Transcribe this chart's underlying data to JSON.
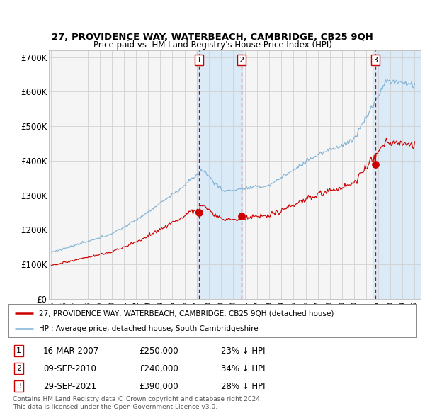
{
  "title": "27, PROVIDENCE WAY, WATERBEACH, CAMBRIDGE, CB25 9QH",
  "subtitle": "Price paid vs. HM Land Registry's House Price Index (HPI)",
  "legend_line1": "27, PROVIDENCE WAY, WATERBEACH, CAMBRIDGE, CB25 9QH (detached house)",
  "legend_line2": "HPI: Average price, detached house, South Cambridgeshire",
  "footer1": "Contains HM Land Registry data © Crown copyright and database right 2024.",
  "footer2": "This data is licensed under the Open Government Licence v3.0.",
  "transactions": [
    {
      "num": 1,
      "date": "16-MAR-2007",
      "price": 250000,
      "pct": "23%",
      "date_x": 2007.2
    },
    {
      "num": 2,
      "date": "09-SEP-2010",
      "price": 240000,
      "pct": "34%",
      "date_x": 2010.69
    },
    {
      "num": 3,
      "date": "29-SEP-2021",
      "price": 390000,
      "pct": "28%",
      "date_x": 2021.74
    }
  ],
  "hpi_color": "#7bafd4",
  "price_color": "#cc0000",
  "highlight_color": "#dbeaf7",
  "vline_color": "#cc0000",
  "dot_color": "#cc0000",
  "grid_color": "#d0d0d0",
  "bg_color": "#f5f5f5",
  "plot_bg": "#f5f5f5",
  "ylim": [
    0,
    720000
  ],
  "yticks": [
    0,
    100000,
    200000,
    300000,
    400000,
    500000,
    600000,
    700000
  ],
  "ytick_labels": [
    "£0",
    "£100K",
    "£200K",
    "£300K",
    "£400K",
    "£500K",
    "£600K",
    "£700K"
  ],
  "xstart": 1994.8,
  "xend": 2025.5,
  "xticks": [
    1995,
    1996,
    1997,
    1998,
    1999,
    2000,
    2001,
    2002,
    2003,
    2004,
    2005,
    2006,
    2007,
    2008,
    2009,
    2010,
    2011,
    2012,
    2013,
    2014,
    2015,
    2016,
    2017,
    2018,
    2019,
    2020,
    2021,
    2022,
    2023,
    2024,
    2025
  ]
}
